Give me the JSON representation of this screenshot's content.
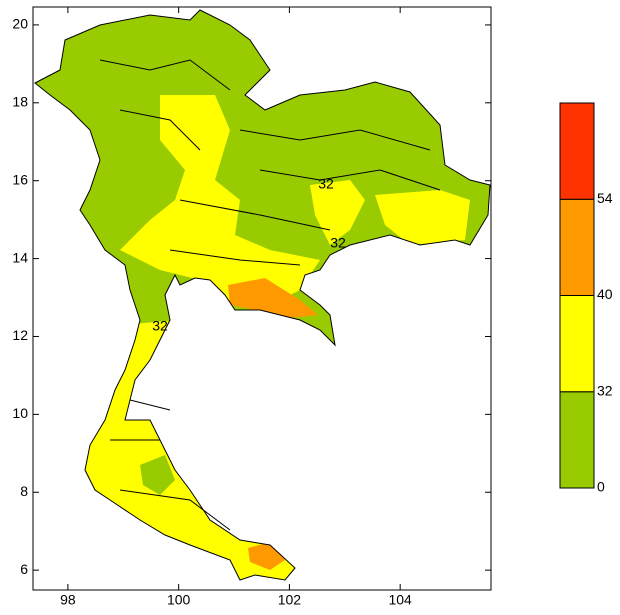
{
  "chart_data": {
    "type": "map",
    "xlim": [
      97.37,
      105.64
    ],
    "xticks": [
      98,
      100,
      102,
      104
    ],
    "ylim": [
      5.49,
      20.46
    ],
    "yticks": [
      6,
      8,
      10,
      12,
      14,
      16,
      18,
      20
    ],
    "colorbar": {
      "levels": [
        0,
        32,
        40,
        54
      ],
      "colors": [
        "#99cc00",
        "#ffff00",
        "#ff9900",
        "#ff3300"
      ]
    },
    "annotations": [
      "32",
      "32",
      "32"
    ]
  }
}
